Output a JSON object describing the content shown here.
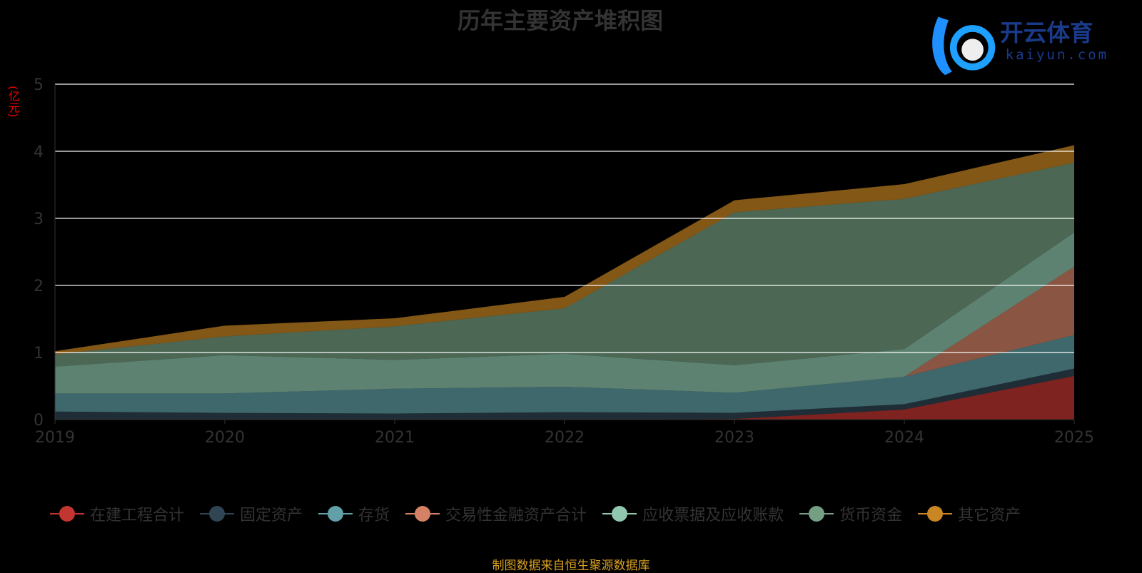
{
  "chart_data": {
    "type": "area",
    "stacked": true,
    "title": "历年主要资产堆积图",
    "ylabel": "(亿元)",
    "xlabel": "",
    "ylim": [
      0,
      5
    ],
    "yticks": [
      "0",
      "1",
      "2",
      "3",
      "4",
      "5"
    ],
    "categories": [
      "2019",
      "2020",
      "2021",
      "2022",
      "2023",
      "2024",
      "2025"
    ],
    "grid": true,
    "legend_position": "bottom",
    "series": [
      {
        "name": "在建工程合计",
        "color": "#c23531",
        "values": [
          0,
          0,
          0,
          0,
          0.01,
          0.15,
          0.65
        ]
      },
      {
        "name": "固定资产",
        "color": "#2f4554",
        "values": [
          0.12,
          0.1,
          0.09,
          0.11,
          0.09,
          0.08,
          0.11
        ]
      },
      {
        "name": "存货",
        "color": "#61a0a8",
        "values": [
          0.27,
          0.29,
          0.37,
          0.38,
          0.3,
          0.41,
          0.5
        ]
      },
      {
        "name": "交易性金融资产合计",
        "color": "#d48265",
        "values": [
          0,
          0,
          0,
          0,
          0,
          0,
          1.02
        ]
      },
      {
        "name": "应收票据及应收账款",
        "color": "#91c7ae",
        "values": [
          0.4,
          0.57,
          0.43,
          0.49,
          0.41,
          0.41,
          0.51
        ]
      },
      {
        "name": "货币资金",
        "color": "#749f83",
        "values": [
          0.18,
          0.28,
          0.5,
          0.68,
          2.28,
          2.24,
          1.04
        ]
      },
      {
        "name": "其它资产",
        "color": "#ca8622",
        "values": [
          0.05,
          0.16,
          0.12,
          0.17,
          0.18,
          0.22,
          0.26
        ]
      }
    ]
  },
  "source": "制图数据来自恒生聚源数据库",
  "watermark": {
    "brand": "开云体育",
    "url": "kaiyun.com"
  }
}
